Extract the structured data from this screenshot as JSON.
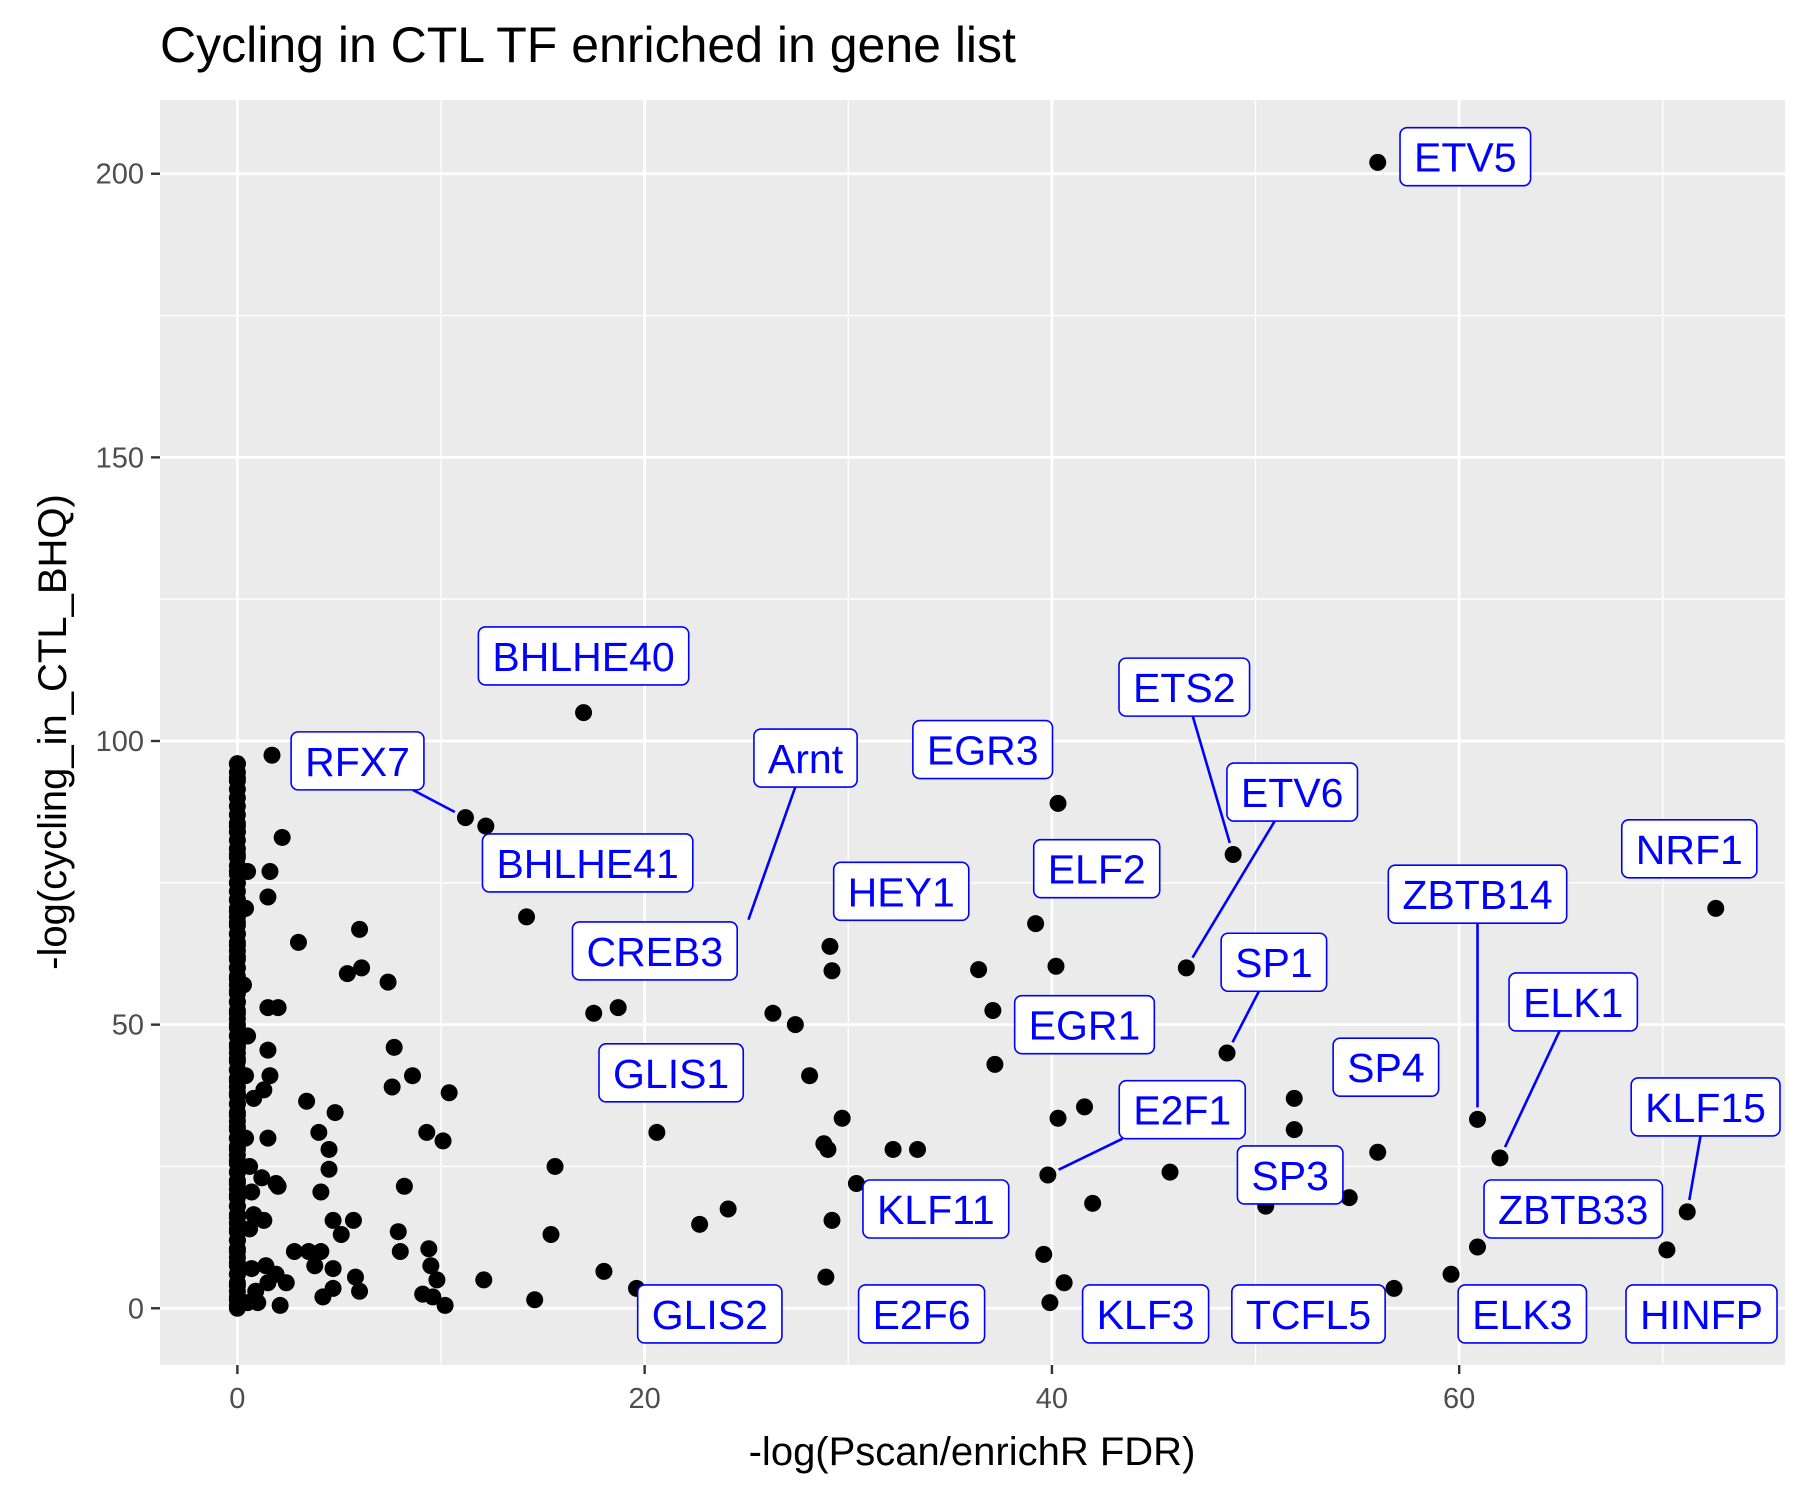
{
  "chart_data": {
    "type": "scatter",
    "title": "Cycling in CTL TF enriched in gene list",
    "xlabel": "-log(Pscan/enrichR FDR)",
    "ylabel": "-log(cycling_in_CTL_BHQ)",
    "xlim": [
      -3.8,
      76
    ],
    "ylim": [
      -10,
      213
    ],
    "x_ticks": [
      0,
      20,
      40,
      60
    ],
    "y_ticks": [
      0,
      50,
      100,
      150,
      200
    ],
    "grid": true,
    "legend": "none",
    "colors": {
      "panel_background": "#ebebeb",
      "grid_line": "#ffffff",
      "point": "#000000",
      "label_text": "#0000ff",
      "label_border": "#0000ff",
      "label_fill": "#ffffff"
    },
    "points": [
      [
        56,
        202
      ],
      [
        17,
        105
      ],
      [
        1.7,
        97.5
      ],
      [
        40.3,
        89
      ],
      [
        11.2,
        86.5
      ],
      [
        12.2,
        85
      ],
      [
        48.9,
        80
      ],
      [
        72.6,
        70.5
      ],
      [
        14.2,
        69
      ],
      [
        46.6,
        60
      ],
      [
        29.1,
        63.8
      ],
      [
        29.2,
        59.5
      ],
      [
        36.4,
        59.7
      ],
      [
        40.2,
        60.3
      ],
      [
        39.2,
        67.8
      ],
      [
        17.5,
        52
      ],
      [
        18.7,
        53
      ],
      [
        26.3,
        52
      ],
      [
        27.4,
        50
      ],
      [
        37.1,
        52.5
      ],
      [
        48.6,
        45
      ],
      [
        37.2,
        43
      ],
      [
        28.1,
        41
      ],
      [
        40.3,
        33.5
      ],
      [
        41.6,
        35.5
      ],
      [
        29.7,
        33.5
      ],
      [
        20.6,
        31
      ],
      [
        28.8,
        29
      ],
      [
        29.0,
        28
      ],
      [
        32.2,
        28
      ],
      [
        33.4,
        28
      ],
      [
        39.8,
        23.5
      ],
      [
        45.8,
        24
      ],
      [
        30.4,
        22
      ],
      [
        42.0,
        18.5
      ],
      [
        51.9,
        37
      ],
      [
        51.9,
        31.5
      ],
      [
        50.5,
        18
      ],
      [
        54.6,
        19.5
      ],
      [
        56.0,
        27.5
      ],
      [
        60.9,
        33.3
      ],
      [
        62.0,
        26.5
      ],
      [
        71.2,
        17
      ],
      [
        60.9,
        10.8
      ],
      [
        70.2,
        10.3
      ],
      [
        59.6,
        6
      ],
      [
        56.8,
        3.5
      ],
      [
        39.6,
        9.5
      ],
      [
        40.6,
        4.5
      ],
      [
        39.9,
        1
      ],
      [
        29.2,
        15.5
      ],
      [
        28.9,
        5.5
      ],
      [
        24.1,
        17.5
      ],
      [
        22.7,
        14.8
      ],
      [
        15.6,
        25
      ],
      [
        15.4,
        13
      ],
      [
        18.0,
        6.5
      ],
      [
        19.6,
        3.5
      ],
      [
        14.6,
        1.5
      ],
      [
        12.1,
        5
      ],
      [
        10.4,
        38
      ],
      [
        10.1,
        29.5
      ],
      [
        9.3,
        31
      ],
      [
        8.6,
        41
      ],
      [
        8.2,
        21.5
      ],
      [
        7.7,
        46
      ],
      [
        7.6,
        39
      ],
      [
        7.4,
        57.5
      ],
      [
        7.9,
        13.5
      ],
      [
        8.0,
        10
      ],
      [
        9.1,
        2.5
      ],
      [
        9.5,
        7.5
      ],
      [
        9.8,
        5
      ],
      [
        9.4,
        10.5
      ],
      [
        9.6,
        2
      ],
      [
        10.2,
        0.5
      ],
      [
        6.0,
        66.8
      ],
      [
        6.1,
        60
      ],
      [
        5.4,
        59
      ],
      [
        4.8,
        34.5
      ],
      [
        4.5,
        28
      ],
      [
        4.0,
        31
      ],
      [
        3.4,
        36.5
      ],
      [
        3.0,
        64.5
      ],
      [
        4.5,
        24.5
      ],
      [
        4.7,
        15.5
      ],
      [
        5.1,
        13
      ],
      [
        5.7,
        15.5
      ],
      [
        5.8,
        5.5
      ],
      [
        6.0,
        3
      ],
      [
        4.1,
        20.5
      ],
      [
        4.1,
        10
      ],
      [
        3.8,
        7.5
      ],
      [
        4.2,
        2
      ],
      [
        4.7,
        3.5
      ],
      [
        4.7,
        7
      ],
      [
        3.5,
        10
      ],
      [
        2.8,
        10
      ],
      [
        2.2,
        83
      ],
      [
        1.6,
        77
      ],
      [
        1.5,
        72.5
      ],
      [
        2.0,
        53
      ],
      [
        1.5,
        53
      ],
      [
        1.5,
        45.5
      ],
      [
        1.6,
        41
      ],
      [
        1.3,
        38.5
      ],
      [
        1.5,
        30
      ],
      [
        1.2,
        23
      ],
      [
        1.9,
        22
      ],
      [
        2.0,
        21.5
      ],
      [
        0.7,
        20.5
      ],
      [
        0.8,
        16.5
      ],
      [
        1.3,
        15.5
      ],
      [
        1.4,
        7.5
      ],
      [
        1.9,
        6
      ],
      [
        1.5,
        4.5
      ],
      [
        2.4,
        4.5
      ],
      [
        2.1,
        0.5
      ],
      [
        1.0,
        1
      ],
      [
        0.8,
        37
      ],
      [
        0.4,
        41
      ],
      [
        0.4,
        70.5
      ],
      [
        0.5,
        77
      ],
      [
        0.3,
        57
      ],
      [
        0.5,
        48
      ],
      [
        0.6,
        25
      ],
      [
        0.4,
        30
      ],
      [
        0.6,
        14
      ],
      [
        0.7,
        7
      ],
      [
        0.9,
        3
      ],
      [
        0.5,
        1
      ]
    ],
    "points_note_x0": "dense column of points at x = 0 spanning y 0 to 96",
    "x0_column": [
      96,
      93.5,
      85,
      84,
      80,
      77,
      75,
      72,
      70,
      68,
      66,
      64,
      62,
      60,
      58,
      56,
      54,
      52,
      50,
      48,
      46,
      44,
      42,
      40,
      38,
      36,
      34,
      32,
      30,
      28,
      26,
      24,
      22,
      20,
      18,
      16,
      14,
      12,
      10,
      8,
      6,
      4,
      2,
      0.5
    ],
    "annotations": [
      {
        "label": "ETV5",
        "x": 56,
        "y": 202,
        "lx": 60.3,
        "ly": 203,
        "line": false
      },
      {
        "label": "BHLHE40",
        "x": 17,
        "y": 105,
        "lx": 17,
        "ly": 115,
        "line": false
      },
      {
        "label": "RFX7",
        "x": 11.2,
        "y": 86.5,
        "lx": 5.9,
        "ly": 96.5,
        "line": true
      },
      {
        "label": "Arnt",
        "x": 24.9,
        "y": 66.5,
        "lx": 27.9,
        "ly": 97,
        "line": true
      },
      {
        "label": "EGR3",
        "x": 40.3,
        "y": 89,
        "lx": 36.6,
        "ly": 98.5,
        "line": false
      },
      {
        "label": "ETS2",
        "x": 48.9,
        "y": 80,
        "lx": 46.5,
        "ly": 109.5,
        "line": true
      },
      {
        "label": "ETV6",
        "x": 46.6,
        "y": 60,
        "lx": 51.8,
        "ly": 91,
        "line": true
      },
      {
        "label": "BHLHE41",
        "x": 12.2,
        "y": 85,
        "lx": 17.2,
        "ly": 78.5,
        "line": false
      },
      {
        "label": "ELF2",
        "x": 40.2,
        "y": 60.3,
        "lx": 42.2,
        "ly": 77.5,
        "line": false
      },
      {
        "label": "HEY1",
        "x": 29.1,
        "y": 63.8,
        "lx": 32.6,
        "ly": 73.5,
        "line": false
      },
      {
        "label": "NRF1",
        "x": 72.6,
        "y": 70.5,
        "lx": 71.3,
        "ly": 81,
        "line": false
      },
      {
        "label": "ZBTB14",
        "x": 60.9,
        "y": 33.3,
        "lx": 60.9,
        "ly": 73,
        "line": true
      },
      {
        "label": "CREB3",
        "x": 24.9,
        "y": 66.5,
        "lx": 20.5,
        "ly": 63,
        "line": false
      },
      {
        "label": "SP1",
        "x": 48.6,
        "y": 45,
        "lx": 50.9,
        "ly": 61,
        "line": true
      },
      {
        "label": "ELK1",
        "x": 62.0,
        "y": 26.5,
        "lx": 65.6,
        "ly": 54,
        "line": true
      },
      {
        "label": "EGR1",
        "x": 37.2,
        "y": 43,
        "lx": 41.6,
        "ly": 50,
        "line": false
      },
      {
        "label": "SP4",
        "x": 56.0,
        "y": 27.5,
        "lx": 56.4,
        "ly": 42.5,
        "line": false
      },
      {
        "label": "GLIS1",
        "x": 20.6,
        "y": 31,
        "lx": 21.3,
        "ly": 41.5,
        "line": false
      },
      {
        "label": "KLF15",
        "x": 71.2,
        "y": 17,
        "lx": 72.1,
        "ly": 35.5,
        "line": true
      },
      {
        "label": "E2F1",
        "x": 39.8,
        "y": 23.5,
        "lx": 46.4,
        "ly": 35,
        "line": true
      },
      {
        "label": "SP3",
        "x": 50.5,
        "y": 18,
        "lx": 51.7,
        "ly": 23.5,
        "line": false
      },
      {
        "label": "ZBTB33",
        "x": 60.9,
        "y": 10.8,
        "lx": 65.6,
        "ly": 17.5,
        "line": false
      },
      {
        "label": "KLF11",
        "x": 30.4,
        "y": 22,
        "lx": 34.3,
        "ly": 17.5,
        "line": false
      },
      {
        "label": "GLIS2",
        "x": 19.6,
        "y": 3.5,
        "lx": 23.2,
        "ly": -1,
        "line": false
      },
      {
        "label": "E2F6",
        "x": 29.2,
        "y": 5.5,
        "lx": 33.6,
        "ly": -1,
        "line": false
      },
      {
        "label": "KLF3",
        "x": 40.6,
        "y": 4.5,
        "lx": 44.6,
        "ly": -1,
        "line": false
      },
      {
        "label": "TCFL5",
        "x": 56.8,
        "y": 3.5,
        "lx": 52.6,
        "ly": -1,
        "line": false
      },
      {
        "label": "ELK3",
        "x": 59.6,
        "y": 6,
        "lx": 63.1,
        "ly": -1,
        "line": false
      },
      {
        "label": "HINFP",
        "x": 70.2,
        "y": 10.3,
        "lx": 71.9,
        "ly": -1,
        "line": false
      }
    ]
  }
}
